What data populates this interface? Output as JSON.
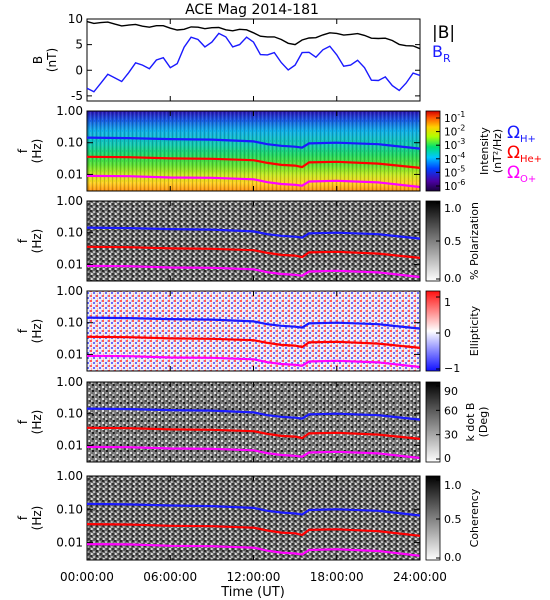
{
  "title": "ACE Mag 2014-181",
  "xlabel": "Time (UT)",
  "x_ticks": [
    "00:00:00",
    "06:00:00",
    "12:00:00",
    "18:00:00",
    "24:00:00"
  ],
  "freq_ticks": [
    "1.00",
    "0.10",
    "0.01"
  ],
  "freq_label_f": "f",
  "freq_label_unit": "(Hz)",
  "panel1": {
    "ylabel_var": "B",
    "ylabel_unit": "(nT)",
    "y_ticks": [
      "10",
      "5",
      "0",
      "-5"
    ],
    "legend_btot": "|B|",
    "legend_br_main": "B",
    "legend_br_sub": "R"
  },
  "colorbar_intensity": {
    "ticks_base": [
      "10",
      "10",
      "10",
      "10",
      "10",
      "10"
    ],
    "ticks_exp": [
      "-1",
      "-2",
      "-3",
      "-4",
      "-5",
      "-6"
    ],
    "label": "Intensity",
    "label2": "(nT²/Hz)"
  },
  "gyro_legend": [
    {
      "sym": "Ω",
      "sub": "H+",
      "color": "#1a1aff"
    },
    {
      "sym": "Ω",
      "sub": "He+",
      "color": "#ff0000"
    },
    {
      "sym": "Ω",
      "sub": "O+",
      "color": "#ff00ff"
    }
  ],
  "colorbar_polarization": {
    "ticks": [
      "1.0",
      "0.5",
      "0.0"
    ],
    "label": "% Polarization"
  },
  "colorbar_ellipticity": {
    "ticks": [
      "1",
      "0",
      "−1"
    ],
    "label": "Ellipticity"
  },
  "colorbar_kdotb": {
    "ticks": [
      "90",
      "60",
      "30",
      "0"
    ],
    "label": "k dot B",
    "label2": "(Deg)"
  },
  "colorbar_coherency": {
    "ticks": [
      "1.0",
      "0.5",
      "0.0"
    ],
    "label": "Coherency"
  },
  "colors": {
    "btot": "#000000",
    "br": "#1a1aff",
    "h_plus": "#1a1aff",
    "he_plus": "#ff0000",
    "o_plus": "#ff00ff"
  },
  "chart_data": [
    {
      "type": "line",
      "title": "ACE Mag 2014-181",
      "xlabel": "Time (UT)",
      "ylabel": "B (nT)",
      "xlim": [
        0,
        24
      ],
      "ylim": [
        -6,
        10
      ],
      "x": [
        0,
        1,
        2,
        3,
        4,
        5,
        6,
        7,
        8,
        9,
        10,
        11,
        12,
        13,
        14,
        15,
        16,
        17,
        18,
        19,
        20,
        21,
        22,
        23,
        24
      ],
      "series": [
        {
          "name": "|B|",
          "color": "#000000",
          "values": [
            9.5,
            9.3,
            9.0,
            8.8,
            8.6,
            8.7,
            8.2,
            8.0,
            8.4,
            8.3,
            7.9,
            8.0,
            7.3,
            6.5,
            6.0,
            5.0,
            6.3,
            6.9,
            7.2,
            7.0,
            6.8,
            6.2,
            5.8,
            4.8,
            4.2
          ]
        },
        {
          "name": "B",
          "color": "#1a1aff",
          "values": [
            -3.5,
            -2.5,
            -1.5,
            -0.5,
            1.0,
            2.0,
            0.5,
            4.5,
            6.0,
            5.5,
            6.5,
            5.0,
            5.5,
            3.0,
            1.5,
            1.0,
            3.5,
            4.0,
            3.0,
            1.0,
            0.5,
            -2.0,
            -3.0,
            -2.5,
            -1.0
          ]
        }
      ]
    },
    {
      "type": "heatmap",
      "name": "Intensity spectrogram",
      "x_unit": "hours UT",
      "y_unit": "Hz",
      "ylim": [
        0.003,
        1.0
      ],
      "y_scale": "log",
      "xlim": [
        0,
        24
      ],
      "colorbar_range": [
        1e-06,
        0.3
      ],
      "colorbar_scale": "log",
      "gyro_lines_x": [
        0,
        3,
        6,
        9,
        12,
        13,
        14,
        15,
        15.5,
        16,
        18,
        21,
        24
      ],
      "h_plus": [
        0.145,
        0.14,
        0.13,
        0.125,
        0.11,
        0.09,
        0.08,
        0.075,
        0.07,
        0.095,
        0.1,
        0.09,
        0.065
      ],
      "he_plus": [
        0.036,
        0.035,
        0.032,
        0.031,
        0.028,
        0.023,
        0.02,
        0.019,
        0.017,
        0.024,
        0.025,
        0.022,
        0.016
      ],
      "o_plus": [
        0.009,
        0.0088,
        0.008,
        0.0078,
        0.007,
        0.0057,
        0.005,
        0.0047,
        0.0044,
        0.006,
        0.0063,
        0.0056,
        0.004
      ]
    },
    {
      "type": "heatmap",
      "name": "% Polarization",
      "colorbar_range": [
        0.0,
        1.0
      ]
    },
    {
      "type": "heatmap",
      "name": "Ellipticity",
      "colorbar_range": [
        -1,
        1
      ]
    },
    {
      "type": "heatmap",
      "name": "k dot B",
      "colorbar_range": [
        0,
        90
      ],
      "unit": "Deg"
    },
    {
      "type": "heatmap",
      "name": "Coherency",
      "colorbar_range": [
        0.0,
        1.0
      ]
    }
  ]
}
